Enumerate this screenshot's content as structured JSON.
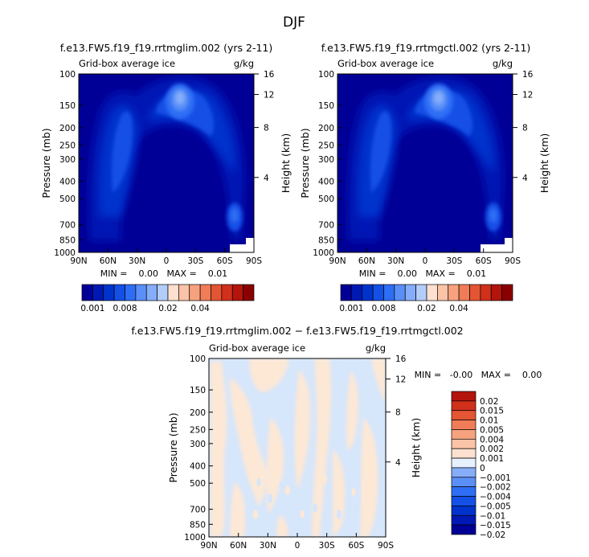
{
  "page": {
    "title": "DJF",
    "diff_title": "f.e13.FW5.f19_f19.rrtmglim.002 − f.e13.FW5.f19_f19.rrtmgctl.002"
  },
  "colors": {
    "frame": "#000000",
    "blues": [
      "#000096",
      "#0019b4",
      "#0033cc",
      "#1450e6",
      "#2e6ef5",
      "#5a8ff7",
      "#86adf9",
      "#b3cdfb"
    ],
    "reds": [
      "#fde0cf",
      "#fbc3a7",
      "#f7a27e",
      "#f07d57",
      "#e45533",
      "#d1301b",
      "#b3140c",
      "#8a0000"
    ],
    "zero": "#e6f0ff",
    "diff_pos": "#fde8d6",
    "diff_neg": "#d6e6fb"
  },
  "chart_data": [
    {
      "type": "heatmap",
      "title": "f.e13.FW5.f19_f19.rrtmglim.002 (yrs 2-11)",
      "subtitle": "Grid-box average ice",
      "units": "g/kg",
      "ylabel": "Pressure (mb)",
      "ylabel_right": "Height (km)",
      "x_ticks": [
        "90N",
        "60N",
        "30N",
        "0",
        "30S",
        "60S",
        "90S"
      ],
      "y_ticks": [
        "100",
        "150",
        "200",
        "250",
        "300",
        "400",
        "500",
        "700",
        "850",
        "1000"
      ],
      "y_ticks_right": [
        "16",
        "12",
        "8",
        "4"
      ],
      "ylim": [
        1000,
        100
      ],
      "min_text": "MIN =    0.00   MAX =    0.01",
      "colorbar_labels": [
        "0.001",
        "0.008",
        "0.02",
        "0.04"
      ]
    },
    {
      "type": "heatmap",
      "title": "f.e13.FW5.f19_f19.rrtmgctl.002 (yrs 2-11)",
      "subtitle": "Grid-box average ice",
      "units": "g/kg",
      "ylabel": "Pressure (mb)",
      "ylabel_right": "Height (km)",
      "x_ticks": [
        "90N",
        "60N",
        "30N",
        "0",
        "30S",
        "60S",
        "90S"
      ],
      "y_ticks": [
        "100",
        "150",
        "200",
        "250",
        "300",
        "400",
        "500",
        "700",
        "850",
        "1000"
      ],
      "y_ticks_right": [
        "16",
        "12",
        "8",
        "4"
      ],
      "ylim": [
        1000,
        100
      ],
      "min_text": "MIN =    0.00   MAX =    0.01",
      "colorbar_labels": [
        "0.001",
        "0.008",
        "0.02",
        "0.04"
      ]
    },
    {
      "type": "heatmap",
      "subtitle": "Grid-box average ice",
      "units": "g/kg",
      "ylabel": "Pressure (mb)",
      "ylabel_right": "Height (km)",
      "x_ticks": [
        "90N",
        "60N",
        "30N",
        "0",
        "30S",
        "60S",
        "90S"
      ],
      "y_ticks": [
        "100",
        "150",
        "200",
        "250",
        "300",
        "400",
        "500",
        "700",
        "850",
        "1000"
      ],
      "y_ticks_right": [
        "16",
        "12",
        "8",
        "4"
      ],
      "ylim": [
        1000,
        100
      ],
      "min_text": "MIN =   -0.00   MAX =    0.00",
      "colorbar_labels": [
        "0.02",
        "0.015",
        "0.01",
        "0.005",
        "0.004",
        "0.002",
        "0.001",
        "0",
        "-0.001",
        "-0.002",
        "-0.004",
        "-0.005",
        "-0.01",
        "-0.015",
        "-0.02"
      ]
    }
  ]
}
